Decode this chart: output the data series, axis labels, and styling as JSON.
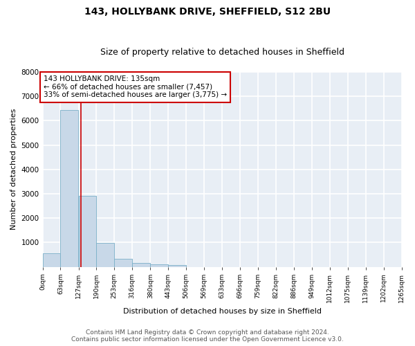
{
  "title_line1": "143, HOLLYBANK DRIVE, SHEFFIELD, S12 2BU",
  "title_line2": "Size of property relative to detached houses in Sheffield",
  "xlabel": "Distribution of detached houses by size in Sheffield",
  "ylabel": "Number of detached properties",
  "bar_color": "#c8d8e8",
  "bar_edge_color": "#7aafc8",
  "background_color": "#e8eef5",
  "grid_color": "#ffffff",
  "annotation_box_color": "#cc0000",
  "annotation_text_line1": "143 HOLLYBANK DRIVE: 135sqm",
  "annotation_text_line2": "← 66% of detached houses are smaller (7,457)",
  "annotation_text_line3": "33% of semi-detached houses are larger (3,775) →",
  "property_size": 135,
  "bin_edges": [
    0,
    63,
    127,
    190,
    253,
    316,
    380,
    443,
    506,
    569,
    633,
    696,
    759,
    822,
    886,
    949,
    1012,
    1075,
    1139,
    1202,
    1265
  ],
  "bar_heights": [
    550,
    6450,
    2900,
    975,
    330,
    155,
    100,
    65,
    0,
    0,
    0,
    0,
    0,
    0,
    0,
    0,
    0,
    0,
    0,
    0
  ],
  "tick_labels": [
    "0sqm",
    "63sqm",
    "127sqm",
    "190sqm",
    "253sqm",
    "316sqm",
    "380sqm",
    "443sqm",
    "506sqm",
    "569sqm",
    "633sqm",
    "696sqm",
    "759sqm",
    "822sqm",
    "886sqm",
    "949sqm",
    "1012sqm",
    "1075sqm",
    "1139sqm",
    "1202sqm",
    "1265sqm"
  ],
  "ylim": [
    0,
    8000
  ],
  "yticks": [
    0,
    1000,
    2000,
    3000,
    4000,
    5000,
    6000,
    7000,
    8000
  ],
  "footer_line1": "Contains HM Land Registry data © Crown copyright and database right 2024.",
  "footer_line2": "Contains public sector information licensed under the Open Government Licence v3.0.",
  "title_fontsize": 10,
  "subtitle_fontsize": 9,
  "axis_label_fontsize": 8,
  "tick_fontsize": 6.5,
  "annotation_fontsize": 7.5,
  "footer_fontsize": 6.5
}
